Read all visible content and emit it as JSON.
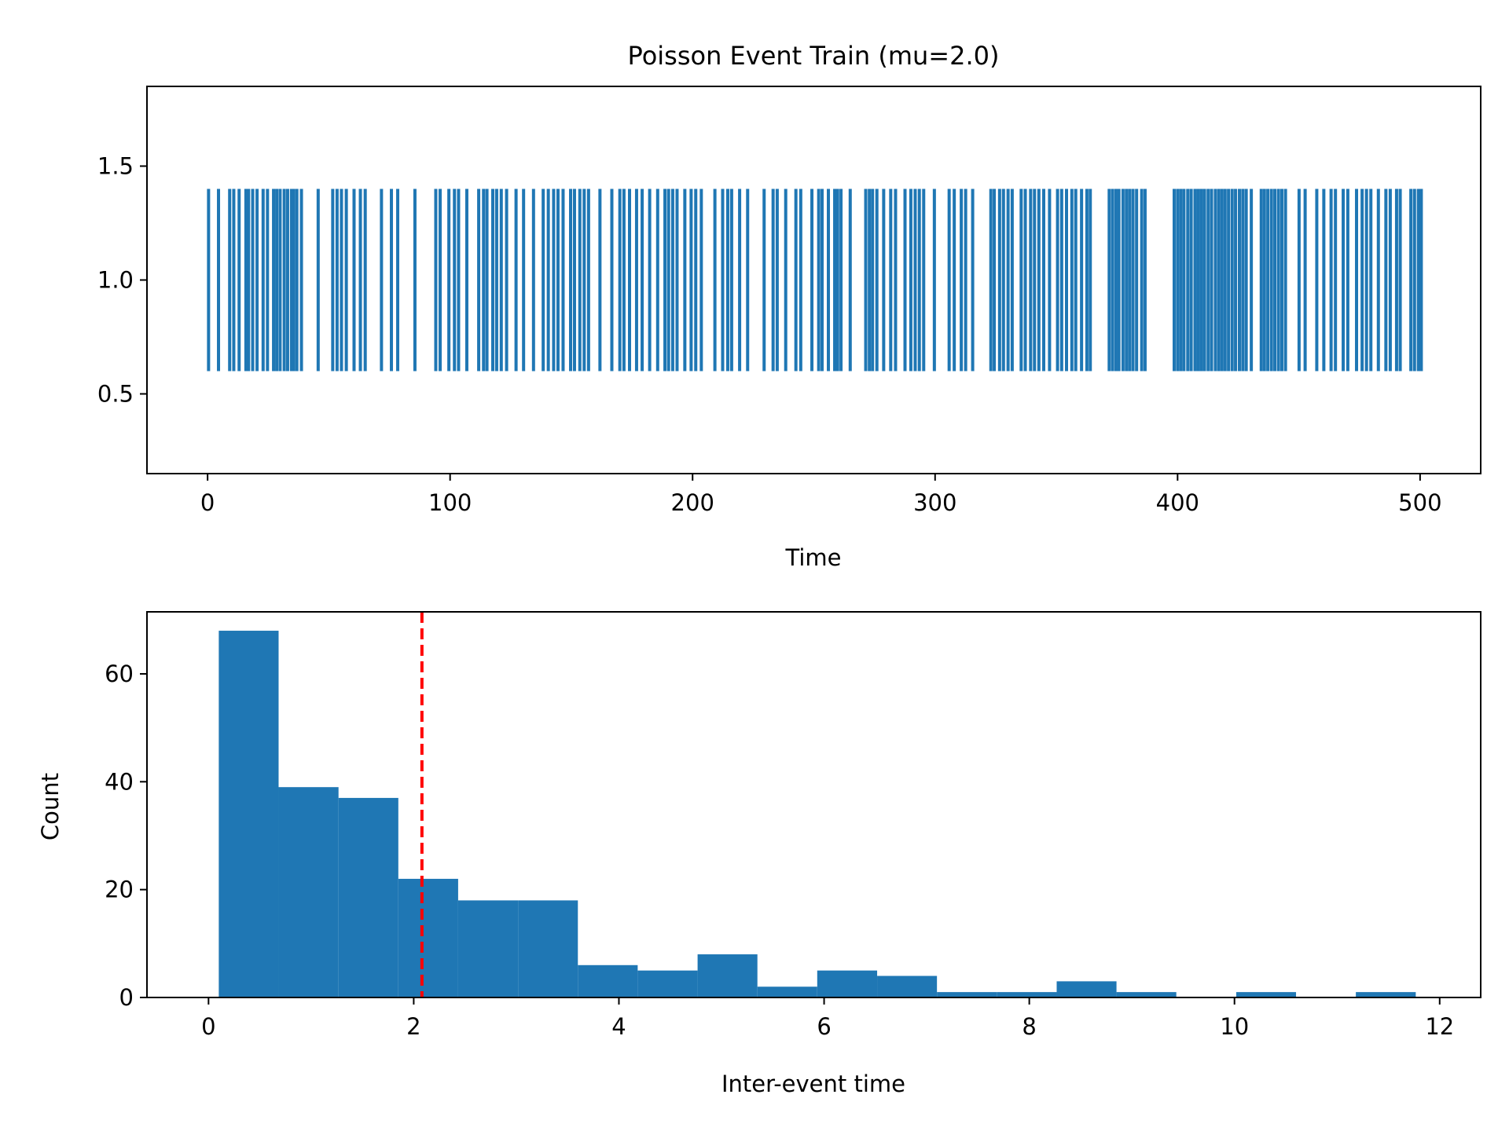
{
  "chart_data": [
    {
      "type": "eventplot",
      "title": "Poisson Event Train (mu=2.0)",
      "xlabel": "Time",
      "ylabel": "",
      "xlim": [
        -25,
        525
      ],
      "ylim": [
        0.15,
        1.85
      ],
      "xticks": [
        0,
        100,
        200,
        300,
        400,
        500
      ],
      "xtick_labels": [
        "0",
        "100",
        "200",
        "300",
        "400",
        "500"
      ],
      "yticks": [
        0.5,
        1.0,
        1.5
      ],
      "ytick_labels": [
        "0.5",
        "1.0",
        "1.5"
      ],
      "line_offset": 1.0,
      "line_length": 0.8,
      "color": "#1f77b4",
      "grid": false,
      "events": [
        0.4,
        4.5,
        9.1,
        10.8,
        13.0,
        15.8,
        16.9,
        18.6,
        20.4,
        22.9,
        24.7,
        27.2,
        28.5,
        29.9,
        31.6,
        33.0,
        34.6,
        35.5,
        36.8,
        38.7,
        45.6,
        51.6,
        53.4,
        55.2,
        57.2,
        60.4,
        63.0,
        65.0,
        71.7,
        75.8,
        78.4,
        85.5,
        94.1,
        95.9,
        99.5,
        101.8,
        103.5,
        106.9,
        111.8,
        113.8,
        115.2,
        117.6,
        119.2,
        121.1,
        123.3,
        127.2,
        130.3,
        134.4,
        138.4,
        140.5,
        142.7,
        144.5,
        146.6,
        149.7,
        151.3,
        153.5,
        155.3,
        157.1,
        161.8,
        166.7,
        170.0,
        171.7,
        174.0,
        176.9,
        179.2,
        182.3,
        185.6,
        188.6,
        190.1,
        191.8,
        193.6,
        196.8,
        199.4,
        201.3,
        203.6,
        209.2,
        212.4,
        214.5,
        216.1,
        219.4,
        222.7,
        229.5,
        233.2,
        234.9,
        238.4,
        242.6,
        244.6,
        249.2,
        252.0,
        253.4,
        256.0,
        258.6,
        259.8,
        261.2,
        265.0,
        271.4,
        272.9,
        274.2,
        276.0,
        278.8,
        281.7,
        283.7,
        287.6,
        290.0,
        291.8,
        293.5,
        295.3,
        299.7,
        305.8,
        307.9,
        310.8,
        312.6,
        315.5,
        323.0,
        324.4,
        326.6,
        328.2,
        330.1,
        331.8,
        335.5,
        337.2,
        339.4,
        341.0,
        342.8,
        344.8,
        347.2,
        350.5,
        352.2,
        354.2,
        356.4,
        358.0,
        360.4,
        362.6,
        364.0,
        371.8,
        373.2,
        374.6,
        375.8,
        377.5,
        378.9,
        380.2,
        381.6,
        383.1,
        385.2,
        386.6,
        398.6,
        400.0,
        401.3,
        402.6,
        404.2,
        405.6,
        407.2,
        408.5,
        409.8,
        411.1,
        412.6,
        414.0,
        415.6,
        417.0,
        418.3,
        419.6,
        421.0,
        422.5,
        423.9,
        425.5,
        426.9,
        428.3,
        430.4,
        434.5,
        435.8,
        437.2,
        438.7,
        440.1,
        441.6,
        443.0,
        444.5,
        450.1,
        452.6,
        457.4,
        460.3,
        463.3,
        465.1,
        468.3,
        470.2,
        473.8,
        476.1,
        477.9,
        479.7,
        482.8,
        485.9,
        487.7,
        490.3,
        491.8,
        496.2,
        497.7,
        499.3,
        500.5
      ]
    },
    {
      "type": "histogram",
      "title": "",
      "xlabel": "Inter-event time",
      "ylabel": "Count",
      "xlim": [
        -0.6,
        12.4
      ],
      "ylim": [
        0,
        71.5
      ],
      "xticks": [
        0,
        2,
        4,
        6,
        8,
        10,
        12
      ],
      "xtick_labels": [
        "0",
        "2",
        "4",
        "6",
        "8",
        "10",
        "12"
      ],
      "yticks": [
        0,
        20,
        40,
        60
      ],
      "ytick_labels": [
        "0",
        "20",
        "40",
        "60"
      ],
      "bin_edges": [
        0.1,
        0.683,
        1.267,
        1.85,
        2.433,
        3.017,
        3.6,
        4.183,
        4.767,
        5.35,
        5.933,
        6.517,
        7.1,
        7.683,
        8.267,
        8.85,
        9.433,
        10.017,
        10.6,
        11.183,
        11.767
      ],
      "counts": [
        68,
        39,
        37,
        22,
        18,
        18,
        6,
        5,
        8,
        2,
        5,
        4,
        1,
        1,
        3,
        1,
        0,
        1,
        0,
        1
      ],
      "bar_color": "#1f77b4",
      "mean_line": {
        "x": 2.08,
        "color": "#ff0000",
        "style": "dashed"
      },
      "grid": false
    }
  ]
}
